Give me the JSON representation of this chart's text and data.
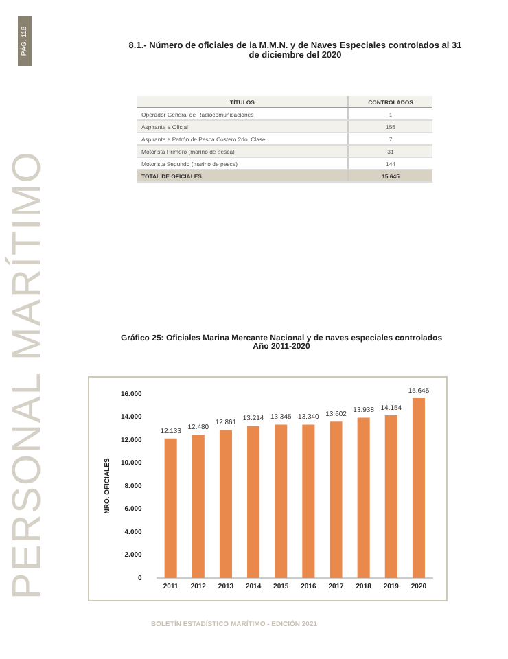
{
  "chart_data": {
    "type": "bar",
    "title": "Gráfico 25: Oficiales Marina Mercante Nacional y de naves especiales controlados",
    "subtitle": "Año 2011-2020",
    "ylabel": "NRO. OFICIALES",
    "categories": [
      "2011",
      "2012",
      "2013",
      "2014",
      "2015",
      "2016",
      "2017",
      "2018",
      "2019",
      "2020"
    ],
    "values": [
      12133,
      12480,
      12861,
      13214,
      13345,
      13340,
      13602,
      13938,
      14154,
      15645
    ],
    "value_labels": [
      "12.133",
      "12.480",
      "12.861",
      "13.214",
      "13.345",
      "13.340",
      "13.602",
      "13.938",
      "14.154",
      "15.645"
    ],
    "color": "#e98a4c",
    "ylim": [
      0,
      16000
    ],
    "yticks": [
      {
        "value": 0,
        "label": "0"
      },
      {
        "value": 2000,
        "label": "2.000"
      },
      {
        "value": 4000,
        "label": "4.000"
      },
      {
        "value": 6000,
        "label": "6.000"
      },
      {
        "value": 8000,
        "label": "8.000"
      },
      {
        "value": 10000,
        "label": "10.000"
      },
      {
        "value": 12000,
        "label": "12.000"
      },
      {
        "value": 14000,
        "label": "14.000"
      },
      {
        "value": 16000,
        "label": "16.000"
      }
    ],
    "grid": false,
    "legend": false,
    "annotations": [
      "8.1.- Número de oficiales de la M.M.N. y de Naves Especiales controlados al 31 de diciembre del 2020",
      "TÍTULOS",
      "CONTROLADOS",
      "Operador General de Radiocomunicaciones",
      "1",
      "Aspirante a Oficial",
      "155",
      "Aspirante a Patrón de Pesca Costero 2do. Clase",
      "7",
      "Motorista Primero (marino de pesca)",
      "31",
      "Motorista Segundo (marino de pesca)",
      "144",
      "TOTAL DE OFICIALES",
      "15.645",
      "PERSONAL MARÍTIMO",
      "PÁG. 116",
      "BOLETÍN ESTADÍSTICO MARÍTIMO - EDICIÓN 2021"
    ]
  }
}
